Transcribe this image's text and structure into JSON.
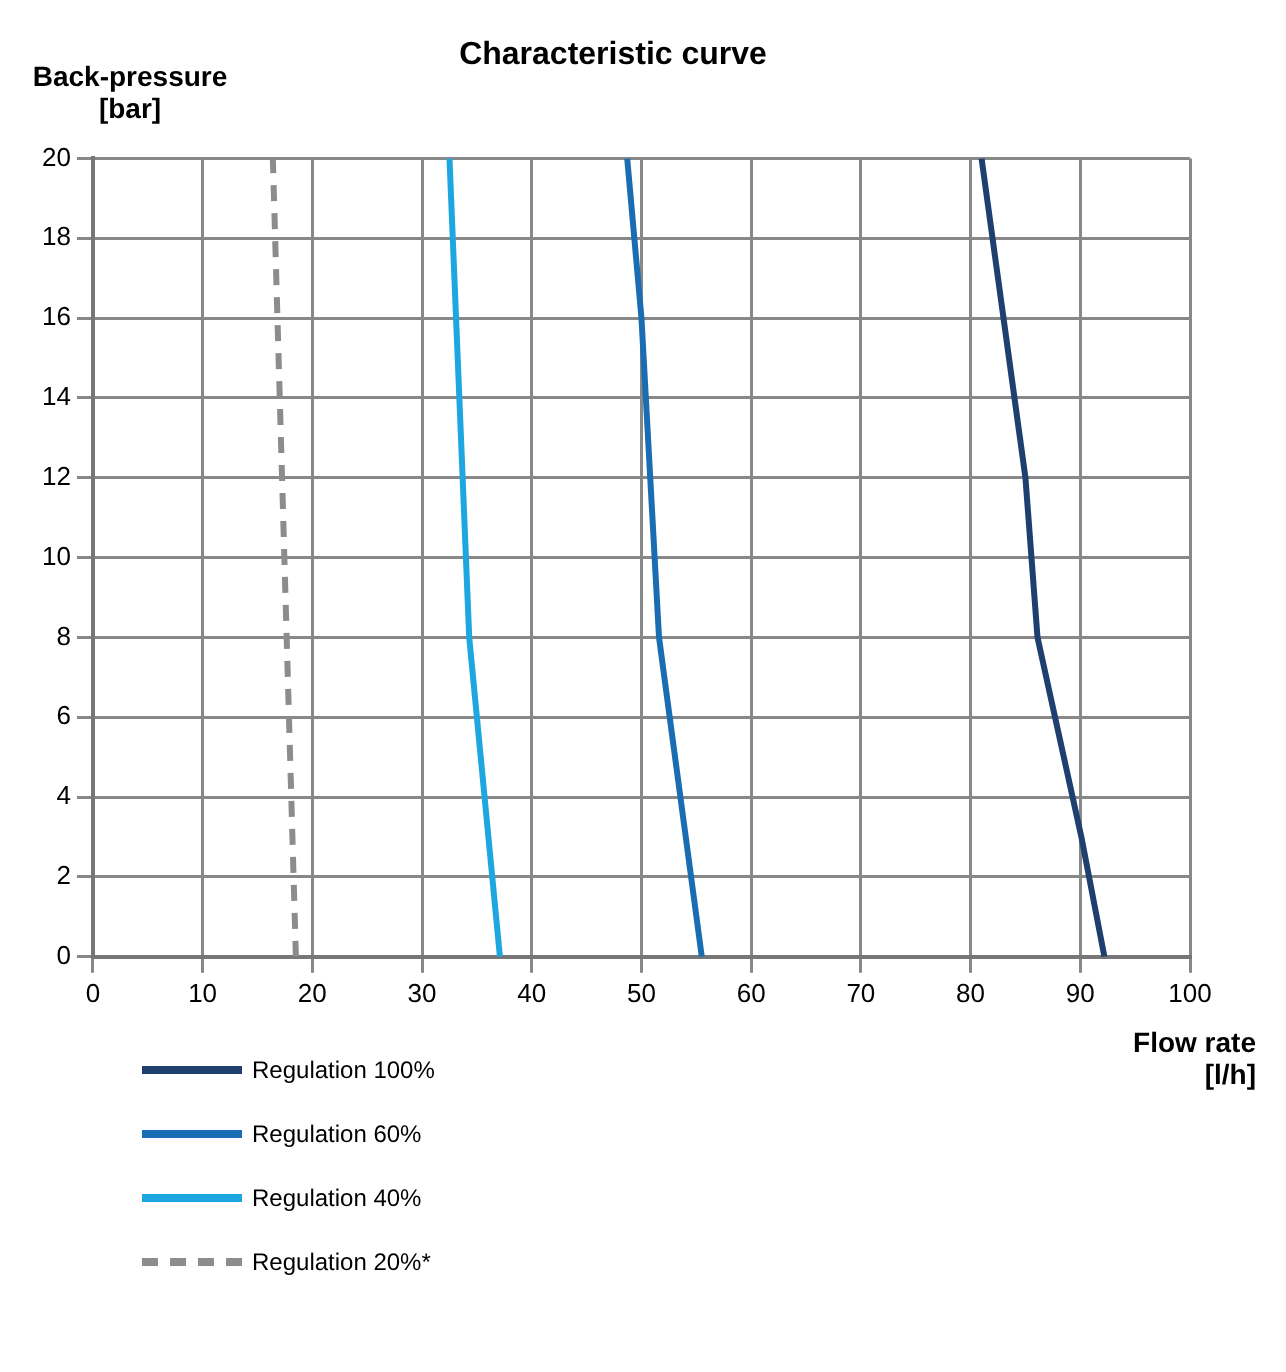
{
  "chart_data": {
    "type": "line",
    "title": "Characteristic curve",
    "xlabel": "Flow rate [l/h]",
    "ylabel": "Back-pressure [bar]",
    "xlim": [
      0,
      100
    ],
    "xticks": [
      0,
      10,
      20,
      30,
      40,
      50,
      60,
      70,
      80,
      90,
      100
    ],
    "ylim": [
      0,
      20
    ],
    "yticks": [
      0,
      2,
      4,
      6,
      8,
      10,
      12,
      14,
      16,
      18,
      20
    ],
    "grid": true,
    "legend": "bottom",
    "marker": "none",
    "series": [
      {
        "name": "Regulation 100%",
        "color": "#1f3f6e",
        "x": [
          92.2,
          90.1,
          86.1,
          85.0,
          81.0
        ],
        "values": [
          0,
          3,
          8,
          12,
          20
        ]
      },
      {
        "name": "Regulation 60%",
        "color": "#1a6db3",
        "x": [
          55.5,
          51.6,
          50.0,
          48.7
        ],
        "values": [
          0,
          8,
          16,
          20
        ]
      },
      {
        "name": "Regulation 40%",
        "color": "#1ea6e0",
        "x": [
          37.1,
          34.3,
          32.5
        ],
        "values": [
          0,
          8,
          20
        ]
      },
      {
        "name": "Regulation 20%*",
        "color": "#8c8c8c",
        "line_style": "dashed",
        "x": [
          18.5,
          16.4
        ],
        "values": [
          0,
          20
        ]
      }
    ]
  }
}
